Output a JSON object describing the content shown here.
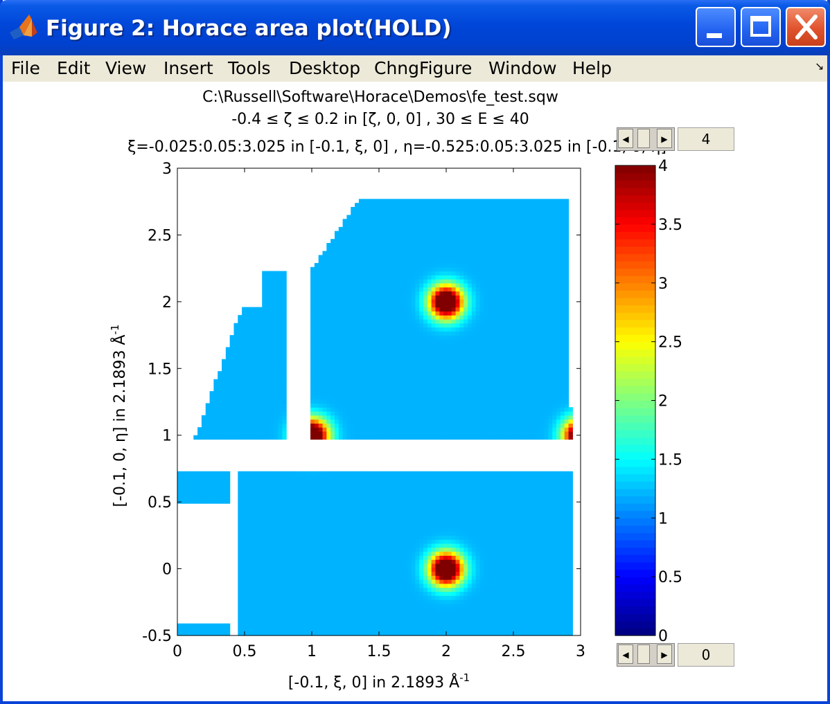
{
  "window": {
    "title": "Figure 2: Horace area plot(HOLD)",
    "icon": "matlab-icon",
    "controls": [
      "minimize-button",
      "maximize-button",
      "close-button"
    ]
  },
  "menu": {
    "items": [
      "File",
      "Edit",
      "View",
      "Insert",
      "Tools",
      "Desktop",
      "ChngFigure",
      "Window",
      "Help"
    ]
  },
  "sliders": {
    "max": {
      "value": "4"
    },
    "min": {
      "value": "0"
    }
  },
  "chart_data": {
    "type": "heatmap",
    "title": [
      "C:\\Russell\\Software\\Horace\\Demos\\fe_test.sqw",
      "-0.4 ≤ ζ ≤ 0.2 in [ζ, 0, 0] , 30 ≤ E ≤ 40",
      "ξ=-0.025:0.05:3.025 in [-0.1, ξ, 0] , η=-0.525:0.05:3.025 in [-0.1, 0, η]"
    ],
    "xlabel": "[-0.1, ξ, 0] in 2.1893 Å",
    "xlabel_sup": "-1",
    "ylabel": "[-0.1, 0, η] in 2.1893 Å",
    "ylabel_sup": "-1",
    "xlim": [
      0,
      3
    ],
    "ylim": [
      -0.5,
      3
    ],
    "xticks": [
      "0",
      "0.5",
      "1",
      "1.5",
      "2",
      "2.5",
      "3"
    ],
    "yticks": [
      "-0.5",
      "0",
      "0.5",
      "1",
      "1.5",
      "2",
      "2.5",
      "3"
    ],
    "colorbar": {
      "colormap": "jet",
      "clim": [
        0,
        4
      ],
      "ticks": [
        "0",
        "0.5",
        "1",
        "1.5",
        "2",
        "2.5",
        "3",
        "3.5",
        "4"
      ]
    },
    "background_intensity": 1.2,
    "peaks": [
      {
        "x": 2,
        "y": 2,
        "peak": 4
      },
      {
        "x": 2,
        "y": 0,
        "peak": 4
      },
      {
        "x": 1,
        "y": 1,
        "peak": 4
      },
      {
        "x": 3,
        "y": 1,
        "peak": 4
      }
    ]
  }
}
